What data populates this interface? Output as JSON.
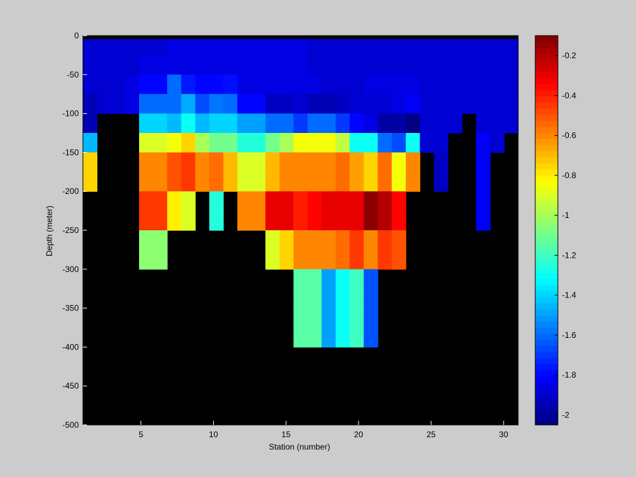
{
  "chart_data": {
    "type": "heatmap",
    "title": "",
    "xlabel": "Station (number)",
    "ylabel": "Depth (meter)",
    "xlim": [
      1,
      31
    ],
    "ylim": [
      -500,
      0
    ],
    "xticks": [
      5,
      10,
      15,
      20,
      25,
      30
    ],
    "yticks": [
      0,
      -50,
      -100,
      -150,
      -200,
      -250,
      -300,
      -350,
      -400,
      -450,
      -500
    ],
    "colorbar": {
      "range": [
        -2.05,
        -0.1
      ],
      "ticks": [
        -0.2,
        -0.4,
        -0.6,
        -0.8,
        -1,
        -1.2,
        -1.4,
        -1.6,
        -1.8,
        -2
      ],
      "colormap": "jet"
    },
    "no_data_color": "#000000",
    "depth_rows": [
      0,
      -25,
      -50,
      -75,
      -100,
      -125,
      -150,
      -175,
      -200,
      -225,
      -250,
      -275,
      -300,
      -325,
      -350,
      -375,
      -400,
      -425,
      -450,
      -475
    ],
    "stations": [
      1,
      2,
      3,
      4,
      5,
      6,
      7,
      8,
      9,
      10,
      11,
      12,
      13,
      14,
      15,
      16,
      17,
      18,
      19,
      20,
      21,
      22,
      23,
      24,
      25,
      26,
      27,
      28,
      29,
      30,
      31
    ],
    "values": [
      [
        -1.89,
        -1.89,
        -1.89,
        -1.89,
        -1.89,
        -1.89,
        -1.86,
        -1.86,
        -1.86,
        -1.86,
        -1.86,
        -1.86,
        -1.86,
        -1.86,
        -1.86,
        -1.86,
        -1.89,
        -1.89,
        -1.89,
        -1.89,
        -1.89,
        -1.89,
        -1.89,
        -1.89,
        -1.89,
        -1.89,
        -1.89,
        -1.89,
        -1.89,
        -1.89,
        -1.89
      ],
      [
        -1.89,
        -1.89,
        -1.89,
        -1.89,
        -1.86,
        -1.86,
        -1.86,
        -1.86,
        -1.86,
        -1.86,
        -1.86,
        -1.86,
        -1.86,
        -1.86,
        -1.86,
        -1.86,
        -1.89,
        -1.89,
        -1.89,
        -1.89,
        -1.89,
        -1.89,
        -1.89,
        -1.89,
        -1.89,
        -1.89,
        -1.89,
        -1.89,
        -1.89,
        -1.89,
        -1.89
      ],
      [
        -1.89,
        -1.89,
        -1.89,
        -1.86,
        -1.8,
        -1.8,
        -1.6,
        -1.76,
        -1.8,
        -1.8,
        -1.78,
        -1.86,
        -1.86,
        -1.86,
        -1.86,
        -1.86,
        -1.86,
        -1.89,
        -1.89,
        -1.89,
        -1.86,
        -1.86,
        -1.86,
        -1.86,
        -1.89,
        -1.89,
        -1.89,
        -1.89,
        -1.89,
        -1.89,
        -1.89
      ],
      [
        -1.95,
        -1.89,
        -1.89,
        -1.86,
        -1.6,
        -1.6,
        -1.6,
        -1.48,
        -1.66,
        -1.58,
        -1.6,
        -1.8,
        -1.8,
        -1.92,
        -1.92,
        -1.89,
        -1.95,
        -1.95,
        -1.92,
        -1.89,
        -1.89,
        -1.89,
        -1.86,
        -1.82,
        -1.89,
        -1.89,
        -1.89,
        -1.89,
        -1.89,
        -1.89,
        -1.89
      ],
      [
        -1.95,
        null,
        null,
        null,
        -1.4,
        -1.4,
        -1.45,
        -1.3,
        -1.45,
        -1.4,
        -1.4,
        -1.5,
        -1.5,
        -1.6,
        -1.6,
        -1.7,
        -1.6,
        -1.6,
        -1.7,
        -1.8,
        -1.86,
        -1.98,
        -1.98,
        -2.05,
        -1.89,
        -1.89,
        -1.89,
        null,
        -1.89,
        -1.89,
        -1.89
      ],
      [
        -1.45,
        null,
        null,
        null,
        -0.9,
        -0.9,
        -0.85,
        -0.75,
        -1.0,
        -1.1,
        -1.1,
        -1.25,
        -1.25,
        -1.1,
        -1.0,
        -0.85,
        -0.85,
        -0.85,
        -0.95,
        -1.3,
        -1.3,
        -1.6,
        -1.66,
        -1.3,
        -1.89,
        -1.89,
        null,
        null,
        -1.82,
        -1.89,
        null
      ],
      [
        -0.75,
        null,
        null,
        null,
        -0.6,
        -0.6,
        -0.5,
        -0.45,
        -0.6,
        -0.55,
        -0.7,
        -0.9,
        -0.9,
        -0.7,
        -0.6,
        -0.6,
        -0.6,
        -0.6,
        -0.55,
        -0.65,
        -0.75,
        -0.55,
        -0.85,
        -0.6,
        null,
        -1.92,
        null,
        null,
        -1.82,
        null,
        null
      ],
      [
        -0.75,
        null,
        null,
        null,
        -0.6,
        -0.6,
        -0.5,
        -0.45,
        -0.6,
        -0.55,
        -0.7,
        -0.9,
        -0.9,
        -0.7,
        -0.6,
        -0.6,
        -0.6,
        -0.6,
        -0.55,
        -0.65,
        -0.75,
        -0.55,
        -0.85,
        -0.6,
        null,
        -1.92,
        null,
        null,
        -1.82,
        null,
        null
      ],
      [
        null,
        null,
        null,
        null,
        -0.45,
        -0.45,
        -0.8,
        -0.9,
        null,
        -1.25,
        null,
        -0.6,
        -0.6,
        -0.3,
        -0.3,
        -0.4,
        -0.35,
        -0.3,
        -0.3,
        -0.3,
        -0.12,
        -0.2,
        -0.35,
        null,
        null,
        null,
        null,
        null,
        -1.82,
        null,
        null
      ],
      [
        null,
        null,
        null,
        null,
        -0.45,
        -0.45,
        -0.8,
        -0.9,
        null,
        -1.25,
        null,
        -0.6,
        -0.6,
        -0.3,
        -0.3,
        -0.4,
        -0.35,
        -0.3,
        -0.3,
        -0.3,
        -0.12,
        -0.2,
        -0.35,
        null,
        null,
        null,
        null,
        null,
        -1.82,
        null,
        null
      ],
      [
        null,
        null,
        null,
        null,
        -1.05,
        -1.05,
        null,
        null,
        null,
        null,
        null,
        null,
        null,
        -0.9,
        -0.75,
        -0.6,
        -0.6,
        -0.6,
        -0.55,
        -0.45,
        -0.6,
        -0.45,
        -0.5,
        null,
        null,
        null,
        null,
        null,
        null,
        null,
        null
      ],
      [
        null,
        null,
        null,
        null,
        -1.05,
        -1.05,
        null,
        null,
        null,
        null,
        null,
        null,
        null,
        -0.9,
        -0.75,
        -0.6,
        -0.6,
        -0.6,
        -0.55,
        -0.45,
        -0.6,
        -0.45,
        -0.5,
        null,
        null,
        null,
        null,
        null,
        null,
        null,
        null
      ],
      [
        null,
        null,
        null,
        null,
        null,
        null,
        null,
        null,
        null,
        null,
        null,
        null,
        null,
        null,
        null,
        -1.15,
        -1.15,
        -1.5,
        -1.3,
        -1.2,
        -1.65,
        null,
        null,
        null,
        null,
        null,
        null,
        null,
        null,
        null,
        null
      ],
      [
        null,
        null,
        null,
        null,
        null,
        null,
        null,
        null,
        null,
        null,
        null,
        null,
        null,
        null,
        null,
        -1.15,
        -1.15,
        -1.5,
        -1.3,
        -1.2,
        -1.65,
        null,
        null,
        null,
        null,
        null,
        null,
        null,
        null,
        null,
        null
      ],
      [
        null,
        null,
        null,
        null,
        null,
        null,
        null,
        null,
        null,
        null,
        null,
        null,
        null,
        null,
        null,
        -1.15,
        -1.15,
        -1.5,
        -1.3,
        -1.2,
        -1.65,
        null,
        null,
        null,
        null,
        null,
        null,
        null,
        null,
        null,
        null
      ],
      [
        null,
        null,
        null,
        null,
        null,
        null,
        null,
        null,
        null,
        null,
        null,
        null,
        null,
        null,
        null,
        -1.15,
        -1.15,
        -1.5,
        -1.3,
        -1.2,
        -1.65,
        null,
        null,
        null,
        null,
        null,
        null,
        null,
        null,
        null,
        null
      ],
      [
        null,
        null,
        null,
        null,
        null,
        null,
        null,
        null,
        null,
        null,
        null,
        null,
        null,
        null,
        null,
        null,
        null,
        null,
        null,
        null,
        null,
        null,
        null,
        null,
        null,
        null,
        null,
        null,
        null,
        null,
        null
      ],
      [
        null,
        null,
        null,
        null,
        null,
        null,
        null,
        null,
        null,
        null,
        null,
        null,
        null,
        null,
        null,
        null,
        null,
        null,
        null,
        null,
        null,
        null,
        null,
        null,
        null,
        null,
        null,
        null,
        null,
        null,
        null
      ],
      [
        null,
        null,
        null,
        null,
        null,
        null,
        null,
        null,
        null,
        null,
        null,
        null,
        null,
        null,
        null,
        null,
        null,
        null,
        null,
        null,
        null,
        null,
        null,
        null,
        null,
        null,
        null,
        null,
        null,
        null,
        null
      ],
      [
        null,
        null,
        null,
        null,
        null,
        null,
        null,
        null,
        null,
        null,
        null,
        null,
        null,
        null,
        null,
        null,
        null,
        null,
        null,
        null,
        null,
        null,
        null,
        null,
        null,
        null,
        null,
        null,
        null,
        null,
        null
      ]
    ]
  }
}
